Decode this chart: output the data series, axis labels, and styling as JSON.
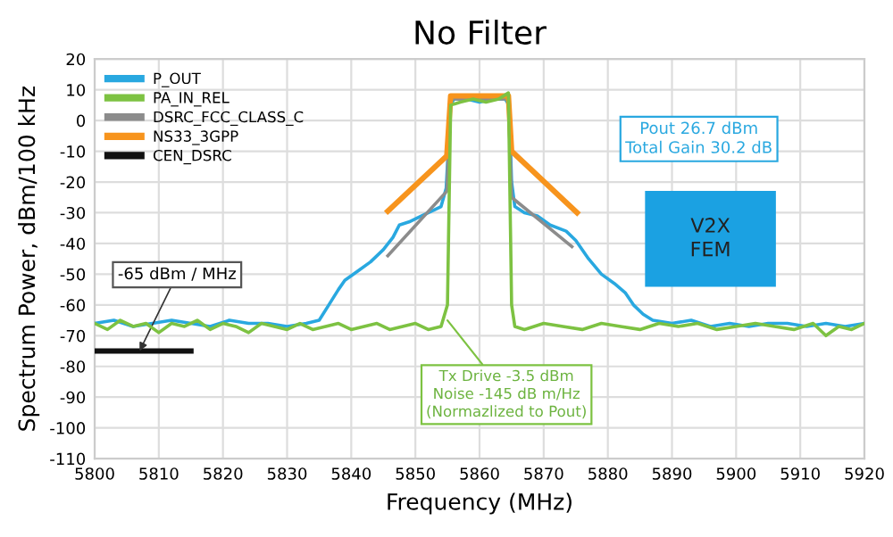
{
  "chart_data": {
    "type": "line",
    "title": "No Filter",
    "xlabel": "Frequency (MHz)",
    "ylabel": "Spectrum Power, dBm/100 kHz",
    "xlim": [
      5800,
      5920
    ],
    "xticks": [
      5800,
      5810,
      5820,
      5830,
      5840,
      5850,
      5860,
      5870,
      5880,
      5890,
      5900,
      5910,
      5920
    ],
    "ylim": [
      -110,
      20
    ],
    "yticks": [
      -110,
      -100,
      -90,
      -80,
      -70,
      -60,
      -50,
      -40,
      -30,
      -20,
      -10,
      0,
      10,
      20
    ],
    "grid": true,
    "legend": "top left",
    "marker": "none",
    "line_style": "solid",
    "series": [
      {
        "name": "P_OUT",
        "color": "#29a8e0",
        "x": [
          5800,
          5803,
          5806,
          5809,
          5812,
          5815,
          5818,
          5821,
          5824,
          5827,
          5830,
          5833,
          5835,
          5836.5,
          5838,
          5839,
          5841,
          5843,
          5845,
          5846.5,
          5847.5,
          5849,
          5851,
          5853,
          5854,
          5854.8,
          5855.5,
          5856,
          5858,
          5860,
          5862,
          5864,
          5864.6,
          5865,
          5865.5,
          5867,
          5869,
          5871,
          5873.5,
          5875,
          5877,
          5879,
          5881,
          5882.7,
          5884,
          5885.5,
          5887,
          5890,
          5893,
          5896,
          5899,
          5902,
          5905,
          5908,
          5911,
          5914,
          5917,
          5920
        ],
        "values": [
          -66,
          -65,
          -67,
          -66,
          -65,
          -66,
          -67,
          -65,
          -66,
          -66,
          -67,
          -66,
          -65,
          -60,
          -55,
          -52,
          -49,
          -46,
          -42,
          -38,
          -34,
          -33,
          -31,
          -29,
          -28,
          -22,
          5,
          7,
          7,
          6,
          7,
          7,
          5,
          -20,
          -28,
          -30,
          -31,
          -34,
          -36,
          -39,
          -45,
          -50,
          -53,
          -56,
          -60,
          -63,
          -65,
          -66,
          -65,
          -67,
          -66,
          -67,
          -66,
          -66,
          -67,
          -66,
          -67,
          -66
        ]
      },
      {
        "name": "PA_IN_REL",
        "color": "#7dc242",
        "x": [
          5800,
          5802,
          5804,
          5806,
          5808,
          5810,
          5812,
          5814,
          5816,
          5818,
          5820,
          5822,
          5824,
          5826,
          5828,
          5830,
          5832,
          5834,
          5836,
          5838,
          5840,
          5842,
          5844,
          5846,
          5848,
          5850,
          5852,
          5854,
          5855,
          5855.5,
          5857,
          5859,
          5861,
          5863,
          5864.5,
          5865,
          5865.5,
          5867,
          5870,
          5873,
          5876,
          5879,
          5882,
          5885,
          5888,
          5891,
          5894,
          5897,
          5900,
          5903,
          5906,
          5909,
          5912,
          5914,
          5916,
          5918,
          5920
        ],
        "values": [
          -66,
          -68,
          -65,
          -67,
          -66,
          -69,
          -66,
          -67,
          -65,
          -68,
          -66,
          -67,
          -69,
          -66,
          -67,
          -68,
          -66,
          -68,
          -67,
          -66,
          -68,
          -67,
          -66,
          -68,
          -67,
          -66,
          -68,
          -67,
          -60,
          5,
          6,
          7,
          6,
          7,
          9,
          -60,
          -67,
          -68,
          -66,
          -67,
          -68,
          -66,
          -67,
          -68,
          -66,
          -67,
          -66,
          -68,
          -67,
          -66,
          -67,
          -68,
          -66,
          -70,
          -67,
          -68,
          -66
        ]
      },
      {
        "name": "DSRC_FCC_CLASS_C",
        "color": "#8c8c8c",
        "x": [
          5845.7,
          5854.9,
          5855.5,
          5864.5,
          5865,
          5874.4
        ],
        "values": [
          -44,
          -23,
          7,
          7,
          -25,
          -41
        ]
      },
      {
        "name": "NS33_3GPP",
        "color": "#f7941d",
        "x": [
          5845.7,
          5854.9,
          5855.5,
          5864.5,
          5865,
          5875.2
        ],
        "values": [
          -29.5,
          -11.5,
          8,
          8,
          -10,
          -30
        ]
      },
      {
        "name": "CEN_DSRC",
        "color": "#111111",
        "x": [
          5800,
          5815
        ],
        "values": [
          -75,
          -75
        ]
      }
    ],
    "annotations": [
      {
        "text": "-65 dBm / MHz",
        "x": 5807,
        "y": -75
      },
      "Pout 26.7 dBm\nTotal Gain 30.2 dB",
      {
        "text": "Tx Drive -3.5 dBm\nNoise -145 dB m/Hz\n(Normazlized to Pout)",
        "x": 5855,
        "y": -65
      },
      "V2X\nFEM"
    ]
  }
}
